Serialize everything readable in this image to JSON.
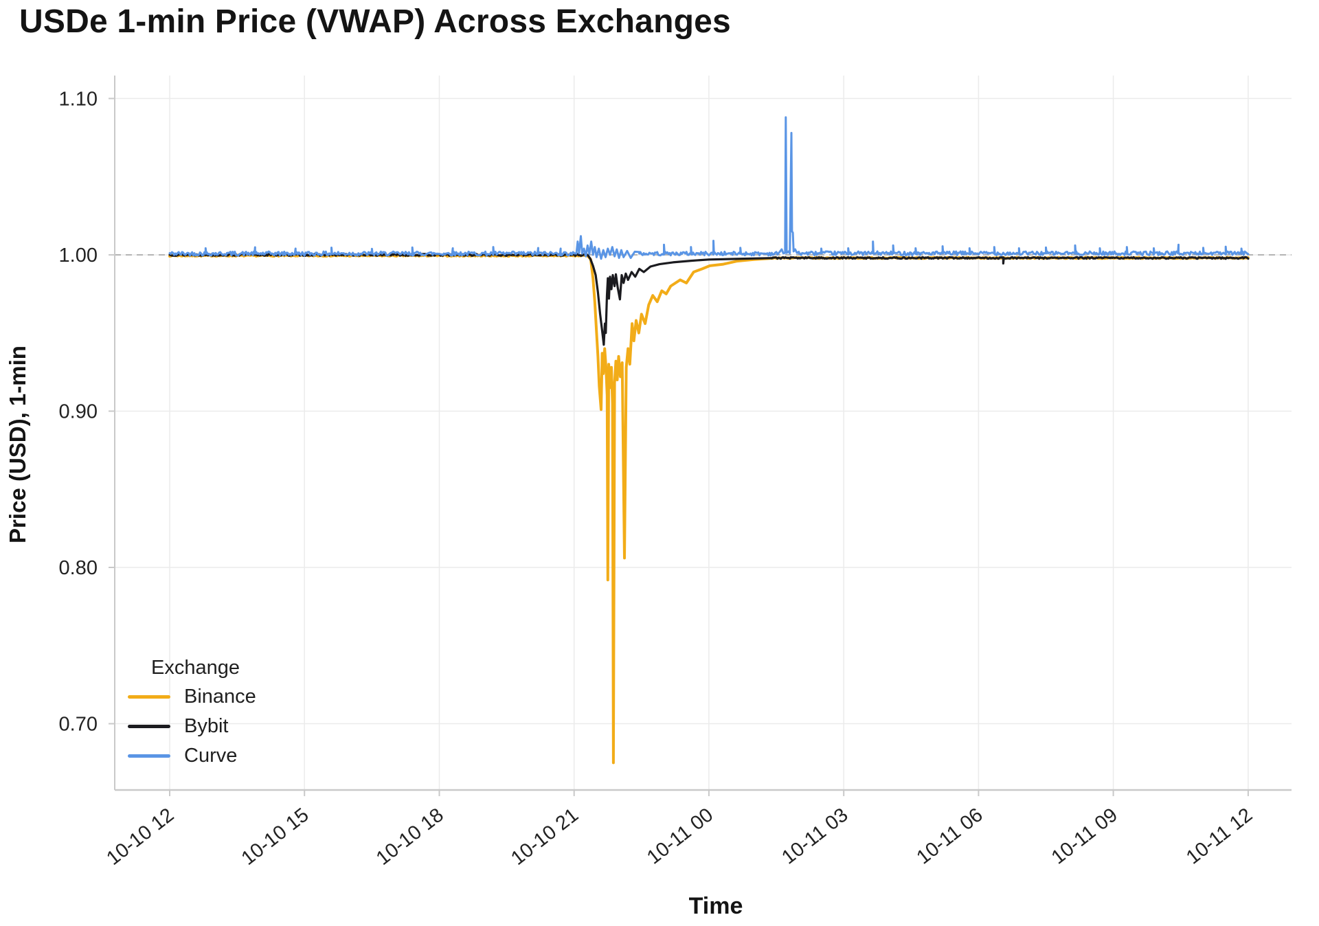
{
  "chart_data": {
    "type": "line",
    "title": "USDe 1-min Price (VWAP) Across Exchanges",
    "xlabel": "Time",
    "ylabel": "Price (USD), 1-min",
    "legend_title": "Exchange",
    "legend_position": "inside-bottom-left",
    "grid": true,
    "background": "#ffffff",
    "grid_color": "#ebebeb",
    "axis_color": "#c9c9c9",
    "text_color": "#222222",
    "x_encoding": "hours after first tick (10-10 12:00)",
    "xlim": [
      -1.223,
      24.965
    ],
    "ylim": [
      0.6576,
      1.1147
    ],
    "x_ticks": [
      {
        "t": 0,
        "label": "10-10 12"
      },
      {
        "t": 3,
        "label": "10-10 15"
      },
      {
        "t": 6,
        "label": "10-10 18"
      },
      {
        "t": 9,
        "label": "10-10 21"
      },
      {
        "t": 12,
        "label": "10-11 00"
      },
      {
        "t": 15,
        "label": "10-11 03"
      },
      {
        "t": 18,
        "label": "10-11 06"
      },
      {
        "t": 21,
        "label": "10-11 09"
      },
      {
        "t": 24,
        "label": "10-11 12"
      }
    ],
    "y_ticks": [
      {
        "v": 0.7,
        "label": "0.70"
      },
      {
        "v": 0.8,
        "label": "0.80"
      },
      {
        "v": 0.9,
        "label": "0.90"
      },
      {
        "v": 1.0,
        "label": "1.00"
      },
      {
        "v": 1.1,
        "label": "1.10"
      }
    ],
    "refline": {
      "v": 1.0,
      "style": "dashed",
      "color": "#ababab"
    },
    "series": [
      {
        "name": "Binance",
        "color": "#F2AC18",
        "width": 4,
        "seed": 7,
        "segments": [
          {
            "from": 0,
            "to": 9.3,
            "level": 0.9995,
            "noise": 0.0004
          },
          {
            "from": 13.4,
            "to": 24,
            "level": 0.998,
            "noise": 0.00035
          }
        ],
        "keypoints": [
          [
            9.3,
            0.9995
          ],
          [
            9.37,
            0.997
          ],
          [
            9.42,
            0.985
          ],
          [
            9.46,
            0.97
          ],
          [
            9.5,
            0.95
          ],
          [
            9.53,
            0.935
          ],
          [
            9.56,
            0.916
          ],
          [
            9.6,
            0.901
          ],
          [
            9.625,
            0.937
          ],
          [
            9.65,
            0.924
          ],
          [
            9.68,
            0.94
          ],
          [
            9.71,
            0.928
          ],
          [
            9.735,
            0.91
          ],
          [
            9.75,
            0.792
          ],
          [
            9.77,
            0.93
          ],
          [
            9.8,
            0.915
          ],
          [
            9.83,
            0.928
          ],
          [
            9.855,
            0.905
          ],
          [
            9.875,
            0.675
          ],
          [
            9.9,
            0.918
          ],
          [
            9.93,
            0.932
          ],
          [
            9.96,
            0.92
          ],
          [
            9.99,
            0.935
          ],
          [
            10.03,
            0.922
          ],
          [
            10.07,
            0.931
          ],
          [
            10.12,
            0.806
          ],
          [
            10.16,
            0.928
          ],
          [
            10.2,
            0.94
          ],
          [
            10.24,
            0.93
          ],
          [
            10.29,
            0.956
          ],
          [
            10.33,
            0.945
          ],
          [
            10.38,
            0.958
          ],
          [
            10.44,
            0.95
          ],
          [
            10.5,
            0.962
          ],
          [
            10.58,
            0.956
          ],
          [
            10.66,
            0.968
          ],
          [
            10.75,
            0.974
          ],
          [
            10.85,
            0.97
          ],
          [
            10.95,
            0.977
          ],
          [
            11.05,
            0.975
          ],
          [
            11.15,
            0.98
          ],
          [
            11.36,
            0.984
          ],
          [
            11.5,
            0.982
          ],
          [
            11.66,
            0.989
          ],
          [
            11.85,
            0.991
          ],
          [
            12.02,
            0.993
          ],
          [
            12.32,
            0.994
          ],
          [
            12.63,
            0.996
          ],
          [
            13.0,
            0.997
          ],
          [
            13.4,
            0.9978
          ]
        ],
        "spikes": []
      },
      {
        "name": "Bybit",
        "color": "#1B1B1F",
        "width": 3.2,
        "seed": 13,
        "segments": [
          {
            "from": 0,
            "to": 9.3,
            "level": 1.0,
            "noise": 0.0006
          },
          {
            "from": 13.4,
            "to": 24,
            "level": 0.998,
            "noise": 0.0005
          }
        ],
        "keypoints": [
          [
            9.3,
            1.0
          ],
          [
            9.36,
            0.9975
          ],
          [
            9.42,
            0.993
          ],
          [
            9.48,
            0.987
          ],
          [
            9.53,
            0.976
          ],
          [
            9.58,
            0.962
          ],
          [
            9.63,
            0.95
          ],
          [
            9.66,
            0.9425
          ],
          [
            9.685,
            0.956
          ],
          [
            9.705,
            0.95
          ],
          [
            9.73,
            0.974
          ],
          [
            9.75,
            0.985
          ],
          [
            9.775,
            0.972
          ],
          [
            9.8,
            0.986
          ],
          [
            9.83,
            0.978
          ],
          [
            9.86,
            0.987
          ],
          [
            9.9,
            0.98
          ],
          [
            9.93,
            0.9875
          ],
          [
            9.97,
            0.979
          ],
          [
            10.02,
            0.9715
          ],
          [
            10.06,
            0.987
          ],
          [
            10.1,
            0.982
          ],
          [
            10.15,
            0.988
          ],
          [
            10.2,
            0.984
          ],
          [
            10.28,
            0.989
          ],
          [
            10.36,
            0.986
          ],
          [
            10.45,
            0.991
          ],
          [
            10.55,
            0.989
          ],
          [
            10.7,
            0.9925
          ],
          [
            10.9,
            0.994
          ],
          [
            11.2,
            0.9952
          ],
          [
            11.6,
            0.9962
          ],
          [
            12.0,
            0.997
          ],
          [
            12.6,
            0.9974
          ],
          [
            13.4,
            0.9978
          ]
        ],
        "spikes": [
          [
            18.55,
            0.9945
          ]
        ]
      },
      {
        "name": "Curve",
        "color": "#5A95E5",
        "width": 3,
        "seed": 42,
        "segments": [
          {
            "from": 0,
            "to": 9.0,
            "level": 1.0008,
            "noise": 0.0013
          },
          {
            "from": 10.45,
            "to": 13.55,
            "level": 1.0008,
            "noise": 0.0012
          },
          {
            "from": 14.0,
            "to": 24,
            "level": 1.001,
            "noise": 0.0012
          }
        ],
        "keypoints": [
          [
            9.0,
            1.001
          ],
          [
            9.05,
            1.0008
          ],
          [
            9.08,
            1.0085
          ],
          [
            9.11,
            1.001
          ],
          [
            9.15,
            1.012
          ],
          [
            9.18,
            1.0008
          ],
          [
            9.22,
            1.004
          ],
          [
            9.26,
            0.999
          ],
          [
            9.3,
            1.006
          ],
          [
            9.34,
            1.0005
          ],
          [
            9.38,
            1.0085
          ],
          [
            9.42,
            1.0
          ],
          [
            9.46,
            1.005
          ],
          [
            9.5,
            0.9985
          ],
          [
            9.55,
            1.004
          ],
          [
            9.6,
            0.9975
          ],
          [
            9.65,
            1.003
          ],
          [
            9.7,
            0.9985
          ],
          [
            9.75,
            1.004
          ],
          [
            9.8,
            1.0
          ],
          [
            9.85,
            1.005
          ],
          [
            9.9,
            0.999
          ],
          [
            9.95,
            1.0035
          ],
          [
            10.0,
            0.998
          ],
          [
            10.05,
            1.003
          ],
          [
            10.1,
            0.9985
          ],
          [
            10.18,
            1.0025
          ],
          [
            10.26,
            0.998
          ],
          [
            10.35,
            1.002
          ],
          [
            10.45,
            1.0008
          ],
          [
            13.55,
            1.001
          ],
          [
            13.62,
            1.0035
          ],
          [
            13.655,
            1.001
          ],
          [
            13.695,
            1.0012
          ],
          [
            13.71,
            1.088
          ],
          [
            13.73,
            1.0012
          ],
          [
            13.77,
            1.0022
          ],
          [
            13.8,
            1.001
          ],
          [
            13.835,
            1.078
          ],
          [
            13.85,
            1.015
          ],
          [
            13.868,
            1.0142
          ],
          [
            13.885,
            1.0022
          ],
          [
            13.92,
            1.0035
          ],
          [
            13.96,
            1.0012
          ],
          [
            14.0,
            1.001
          ]
        ],
        "spikes": [
          [
            0.8,
            1.0042
          ],
          [
            1.9,
            1.0048
          ],
          [
            2.8,
            1.004
          ],
          [
            3.6,
            1.0046
          ],
          [
            4.5,
            1.0038
          ],
          [
            5.4,
            1.0047
          ],
          [
            6.3,
            1.0042
          ],
          [
            7.2,
            1.005
          ],
          [
            8.2,
            1.0044
          ],
          [
            8.7,
            1.004
          ],
          [
            11.0,
            1.0065
          ],
          [
            11.6,
            1.005
          ],
          [
            12.1,
            1.009
          ],
          [
            12.7,
            1.0045
          ],
          [
            14.5,
            1.004
          ],
          [
            15.1,
            1.0042
          ],
          [
            15.65,
            1.0085
          ],
          [
            16.1,
            1.006
          ],
          [
            16.6,
            1.0042
          ],
          [
            17.2,
            1.0055
          ],
          [
            17.8,
            1.0042
          ],
          [
            18.35,
            1.005
          ],
          [
            18.9,
            1.0042
          ],
          [
            19.5,
            1.0047
          ],
          [
            20.15,
            1.006
          ],
          [
            20.7,
            1.0042
          ],
          [
            21.3,
            1.005
          ],
          [
            21.9,
            1.0042
          ],
          [
            22.45,
            1.0065
          ],
          [
            23.0,
            1.0045
          ],
          [
            23.5,
            1.0052
          ],
          [
            23.85,
            1.004
          ]
        ]
      }
    ]
  }
}
